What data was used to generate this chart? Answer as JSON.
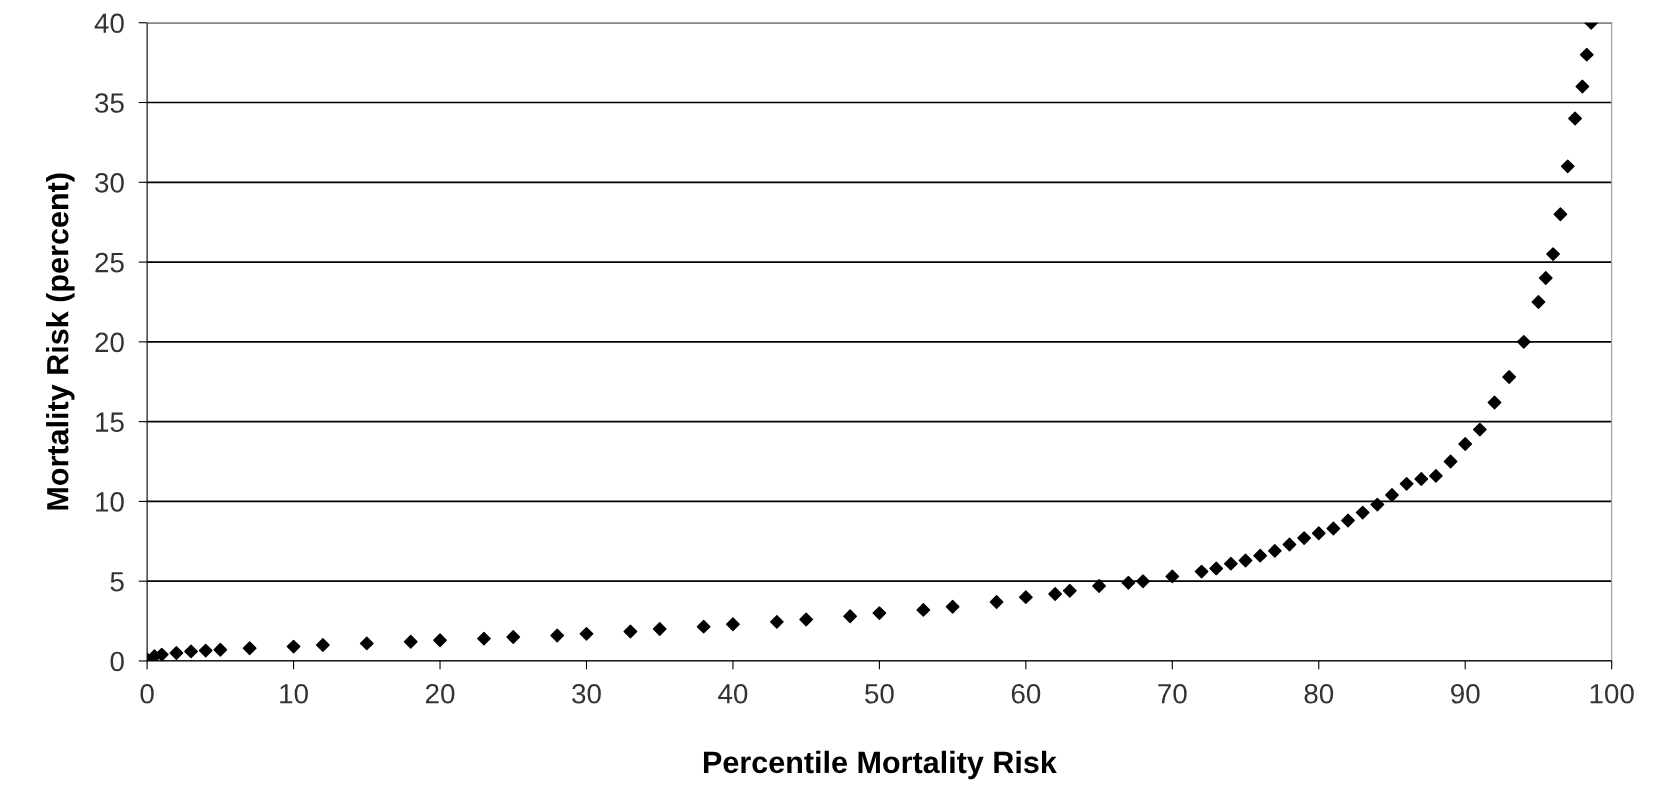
{
  "chart_data": {
    "type": "scatter",
    "xlabel": "Percentile Mortality Risk",
    "ylabel": "Mortality Risk (percent)",
    "x": [
      0,
      0.5,
      1,
      2,
      3,
      4,
      5,
      7,
      10,
      12,
      15,
      18,
      20,
      23,
      25,
      28,
      30,
      33,
      35,
      38,
      40,
      43,
      45,
      48,
      50,
      53,
      55,
      58,
      60,
      62,
      63,
      65,
      67,
      68,
      70,
      72,
      73,
      74,
      75,
      76,
      77,
      78,
      79,
      80,
      81,
      82,
      83,
      84,
      85,
      86,
      87,
      88,
      89,
      90,
      91,
      92,
      93,
      94,
      95,
      95.5,
      96,
      96.5,
      97,
      97.5,
      98,
      98.3,
      98.6
    ],
    "values": [
      0.1,
      0.3,
      0.4,
      0.5,
      0.6,
      0.65,
      0.7,
      0.8,
      0.9,
      1.0,
      1.1,
      1.2,
      1.3,
      1.4,
      1.5,
      1.6,
      1.7,
      1.85,
      2.0,
      2.15,
      2.3,
      2.45,
      2.6,
      2.8,
      3.0,
      3.2,
      3.4,
      3.7,
      4.0,
      4.2,
      4.4,
      4.7,
      4.9,
      5.0,
      5.3,
      5.6,
      5.8,
      6.1,
      6.3,
      6.6,
      6.9,
      7.3,
      7.7,
      8.0,
      8.3,
      8.8,
      9.3,
      9.8,
      10.4,
      11.1,
      11.4,
      11.6,
      12.5,
      13.6,
      14.5,
      16.2,
      17.8,
      20.0,
      22.5,
      24.0,
      25.5,
      28.0,
      31.0,
      34.0,
      36.0,
      38.0,
      40.0
    ],
    "color": "#000000",
    "marker": "diamond",
    "xlim": [
      0,
      100
    ],
    "xticks": [
      0,
      10,
      20,
      30,
      40,
      50,
      60,
      70,
      80,
      90,
      100
    ],
    "ylim": [
      0,
      40
    ],
    "yticks": [
      0,
      5,
      10,
      15,
      20,
      25,
      30,
      35,
      40
    ],
    "grid": "y",
    "legend": false
  }
}
